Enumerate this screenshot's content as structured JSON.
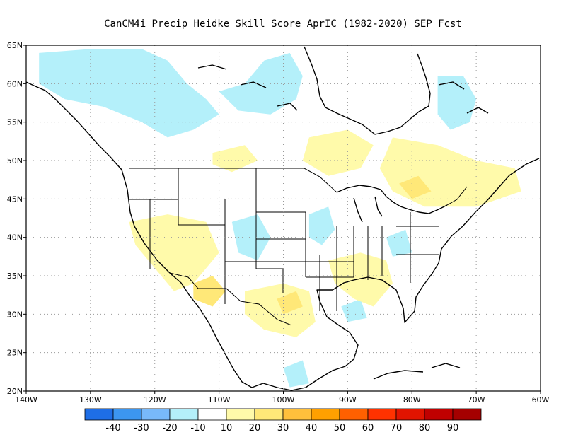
{
  "title": "CanCM4i Precip Heidke Skill Score AprIC (1982-2020) SEP Fcst",
  "map": {
    "projection": "latlon",
    "lon_range": [
      -140,
      -60
    ],
    "lat_range": [
      20,
      65
    ],
    "grid": "dotted",
    "lat_ticks": [
      {
        "value": 65,
        "label": "65N"
      },
      {
        "value": 60,
        "label": "60N"
      },
      {
        "value": 55,
        "label": "55N"
      },
      {
        "value": 50,
        "label": "50N"
      },
      {
        "value": 45,
        "label": "45N"
      },
      {
        "value": 40,
        "label": "40N"
      },
      {
        "value": 35,
        "label": "35N"
      },
      {
        "value": 30,
        "label": "30N"
      },
      {
        "value": 25,
        "label": "25N"
      },
      {
        "value": 20,
        "label": "20N"
      }
    ],
    "lon_ticks": [
      {
        "value": -140,
        "label": "140W"
      },
      {
        "value": -130,
        "label": "130W"
      },
      {
        "value": -120,
        "label": "120W"
      },
      {
        "value": -110,
        "label": "110W"
      },
      {
        "value": -100,
        "label": "100W"
      },
      {
        "value": -90,
        "label": "90W"
      },
      {
        "value": -80,
        "label": "80W"
      },
      {
        "value": -70,
        "label": "70W"
      },
      {
        "value": -60,
        "label": "60W"
      }
    ]
  },
  "colorbar": {
    "bins": [
      {
        "color": "#1e6ee6"
      },
      {
        "color": "#3c96f0"
      },
      {
        "color": "#78b9fa"
      },
      {
        "color": "#b4f0fa"
      },
      {
        "color": "#ffffff"
      },
      {
        "color": "#fffaaa"
      },
      {
        "color": "#ffe878"
      },
      {
        "color": "#ffc03c"
      },
      {
        "color": "#ffa000"
      },
      {
        "color": "#ff6000"
      },
      {
        "color": "#ff3200"
      },
      {
        "color": "#e11400"
      },
      {
        "color": "#c00000"
      },
      {
        "color": "#a50000"
      }
    ],
    "labels": [
      "-40",
      "-30",
      "-20",
      "-10",
      "10",
      "20",
      "30",
      "40",
      "50",
      "60",
      "70",
      "80",
      "90"
    ]
  },
  "skill_regions": [
    {
      "level": -20,
      "color": "#78b9fa",
      "points": [
        [
          -104,
          62
        ],
        [
          -102,
          62.8
        ],
        [
          -100,
          63.5
        ],
        [
          -101,
          61
        ],
        [
          -103,
          60.5
        ]
      ]
    },
    {
      "level": -20,
      "color": "#78b9fa",
      "points": [
        [
          -127,
          64
        ],
        [
          -124,
          64.5
        ],
        [
          -124,
          61
        ],
        [
          -126,
          60.5
        ],
        [
          -127,
          62
        ]
      ]
    },
    {
      "level": -20,
      "color": "#78b9fa",
      "points": [
        [
          -75,
          59
        ],
        [
          -73,
          58.5
        ],
        [
          -72,
          57
        ],
        [
          -74,
          56.5
        ],
        [
          -75,
          57.5
        ]
      ]
    },
    {
      "level": -10,
      "color": "#b4f0fa",
      "points": [
        [
          -138,
          64
        ],
        [
          -130,
          64.5
        ],
        [
          -122,
          64.5
        ],
        [
          -118,
          63
        ],
        [
          -115,
          60
        ],
        [
          -112,
          58
        ],
        [
          -110,
          56
        ],
        [
          -114,
          54
        ],
        [
          -118,
          53
        ],
        [
          -122,
          55
        ],
        [
          -128,
          57
        ],
        [
          -134,
          58
        ],
        [
          -138,
          60
        ]
      ]
    },
    {
      "level": -10,
      "color": "#b4f0fa",
      "points": [
        [
          -110,
          59
        ],
        [
          -106,
          60
        ],
        [
          -103,
          63
        ],
        [
          -99,
          64
        ],
        [
          -97,
          61
        ],
        [
          -98,
          58
        ],
        [
          -102,
          56
        ],
        [
          -107,
          56.5
        ]
      ]
    },
    {
      "level": -10,
      "color": "#b4f0fa",
      "points": [
        [
          -76,
          61
        ],
        [
          -72,
          61
        ],
        [
          -70,
          58
        ],
        [
          -71,
          55
        ],
        [
          -74,
          54
        ],
        [
          -76,
          56
        ]
      ]
    },
    {
      "level": -10,
      "color": "#b4f0fa",
      "points": [
        [
          -96,
          43
        ],
        [
          -93,
          44
        ],
        [
          -92,
          41
        ],
        [
          -94,
          39
        ],
        [
          -96,
          40
        ]
      ]
    },
    {
      "level": -10,
      "color": "#b4f0fa",
      "points": [
        [
          -108,
          42
        ],
        [
          -104,
          43
        ],
        [
          -102,
          40
        ],
        [
          -104,
          37
        ],
        [
          -107,
          38
        ]
      ]
    },
    {
      "level": -10,
      "color": "#b4f0fa",
      "points": [
        [
          -91,
          31
        ],
        [
          -88,
          32
        ],
        [
          -87,
          29.5
        ],
        [
          -90,
          29
        ]
      ]
    },
    {
      "level": -10,
      "color": "#b4f0fa",
      "points": [
        [
          -100,
          23
        ],
        [
          -97,
          24
        ],
        [
          -96,
          21
        ],
        [
          -99,
          20.5
        ]
      ]
    },
    {
      "level": -10,
      "color": "#b4f0fa",
      "points": [
        [
          -84,
          40
        ],
        [
          -81,
          41
        ],
        [
          -80,
          38
        ],
        [
          -83,
          37.5
        ]
      ]
    },
    {
      "level": 10,
      "color": "#fffaaa",
      "points": [
        [
          -96,
          53
        ],
        [
          -90,
          54
        ],
        [
          -86,
          52
        ],
        [
          -88,
          49
        ],
        [
          -93,
          48
        ],
        [
          -97,
          50
        ]
      ]
    },
    {
      "level": 10,
      "color": "#fffaaa",
      "points": [
        [
          -83,
          53
        ],
        [
          -76,
          52
        ],
        [
          -70,
          50
        ],
        [
          -64,
          49
        ],
        [
          -63,
          46
        ],
        [
          -70,
          44
        ],
        [
          -78,
          44
        ],
        [
          -83,
          46
        ],
        [
          -85,
          49
        ]
      ]
    },
    {
      "level": 10,
      "color": "#fffaaa",
      "points": [
        [
          -124,
          42
        ],
        [
          -118,
          43
        ],
        [
          -112,
          42
        ],
        [
          -110,
          38
        ],
        [
          -114,
          34
        ],
        [
          -117,
          33
        ],
        [
          -120,
          36
        ],
        [
          -123,
          39
        ]
      ]
    },
    {
      "level": 10,
      "color": "#fffaaa",
      "points": [
        [
          -106,
          33
        ],
        [
          -100,
          34
        ],
        [
          -96,
          33
        ],
        [
          -95,
          29
        ],
        [
          -98,
          27
        ],
        [
          -103,
          28
        ],
        [
          -106,
          30
        ]
      ]
    },
    {
      "level": 10,
      "color": "#fffaaa",
      "points": [
        [
          -93,
          37
        ],
        [
          -88,
          38
        ],
        [
          -84,
          37
        ],
        [
          -83,
          34
        ],
        [
          -86,
          31
        ],
        [
          -89,
          32
        ],
        [
          -92,
          34
        ]
      ]
    },
    {
      "level": 10,
      "color": "#fffaaa",
      "points": [
        [
          -111,
          51
        ],
        [
          -106,
          52
        ],
        [
          -104,
          50
        ],
        [
          -108,
          48.5
        ],
        [
          -111,
          49.5
        ]
      ]
    },
    {
      "level": 20,
      "color": "#ffe878",
      "points": [
        [
          -114,
          34
        ],
        [
          -111,
          35
        ],
        [
          -109,
          33
        ],
        [
          -111,
          31
        ],
        [
          -114,
          32
        ]
      ]
    },
    {
      "level": 20,
      "color": "#ffe878",
      "points": [
        [
          -101,
          32
        ],
        [
          -98,
          33
        ],
        [
          -97,
          31
        ],
        [
          -100,
          30
        ]
      ]
    },
    {
      "level": 20,
      "color": "#ffe878",
      "points": [
        [
          -82,
          47
        ],
        [
          -79,
          48
        ],
        [
          -77,
          46
        ],
        [
          -80,
          45
        ]
      ]
    }
  ]
}
